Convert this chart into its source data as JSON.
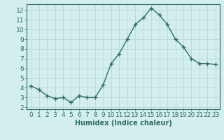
{
  "x": [
    0,
    1,
    2,
    3,
    4,
    5,
    6,
    7,
    8,
    9,
    10,
    11,
    12,
    13,
    14,
    15,
    16,
    17,
    18,
    19,
    20,
    21,
    22,
    23
  ],
  "y": [
    4.2,
    3.8,
    3.2,
    2.9,
    3.0,
    2.5,
    3.2,
    3.0,
    3.0,
    4.3,
    6.5,
    7.5,
    9.0,
    10.5,
    11.2,
    12.2,
    11.5,
    10.5,
    9.0,
    8.2,
    7.0,
    6.5,
    6.5,
    6.4
  ],
  "line_color": "#2d6e65",
  "marker": "+",
  "marker_size": 4,
  "bg_color": "#d4eeee",
  "grid_color": "#b8d8d8",
  "xlabel": "Humidex (Indice chaleur)",
  "xlim": [
    -0.5,
    23.5
  ],
  "ylim": [
    1.8,
    12.6
  ],
  "yticks": [
    2,
    3,
    4,
    5,
    6,
    7,
    8,
    9,
    10,
    11,
    12
  ],
  "xticks": [
    0,
    1,
    2,
    3,
    4,
    5,
    6,
    7,
    8,
    9,
    10,
    11,
    12,
    13,
    14,
    15,
    16,
    17,
    18,
    19,
    20,
    21,
    22,
    23
  ],
  "tick_color": "#2d6e65",
  "label_color": "#2d6e65",
  "xlabel_fontsize": 7,
  "tick_fontsize": 6.5,
  "linewidth": 1.0
}
